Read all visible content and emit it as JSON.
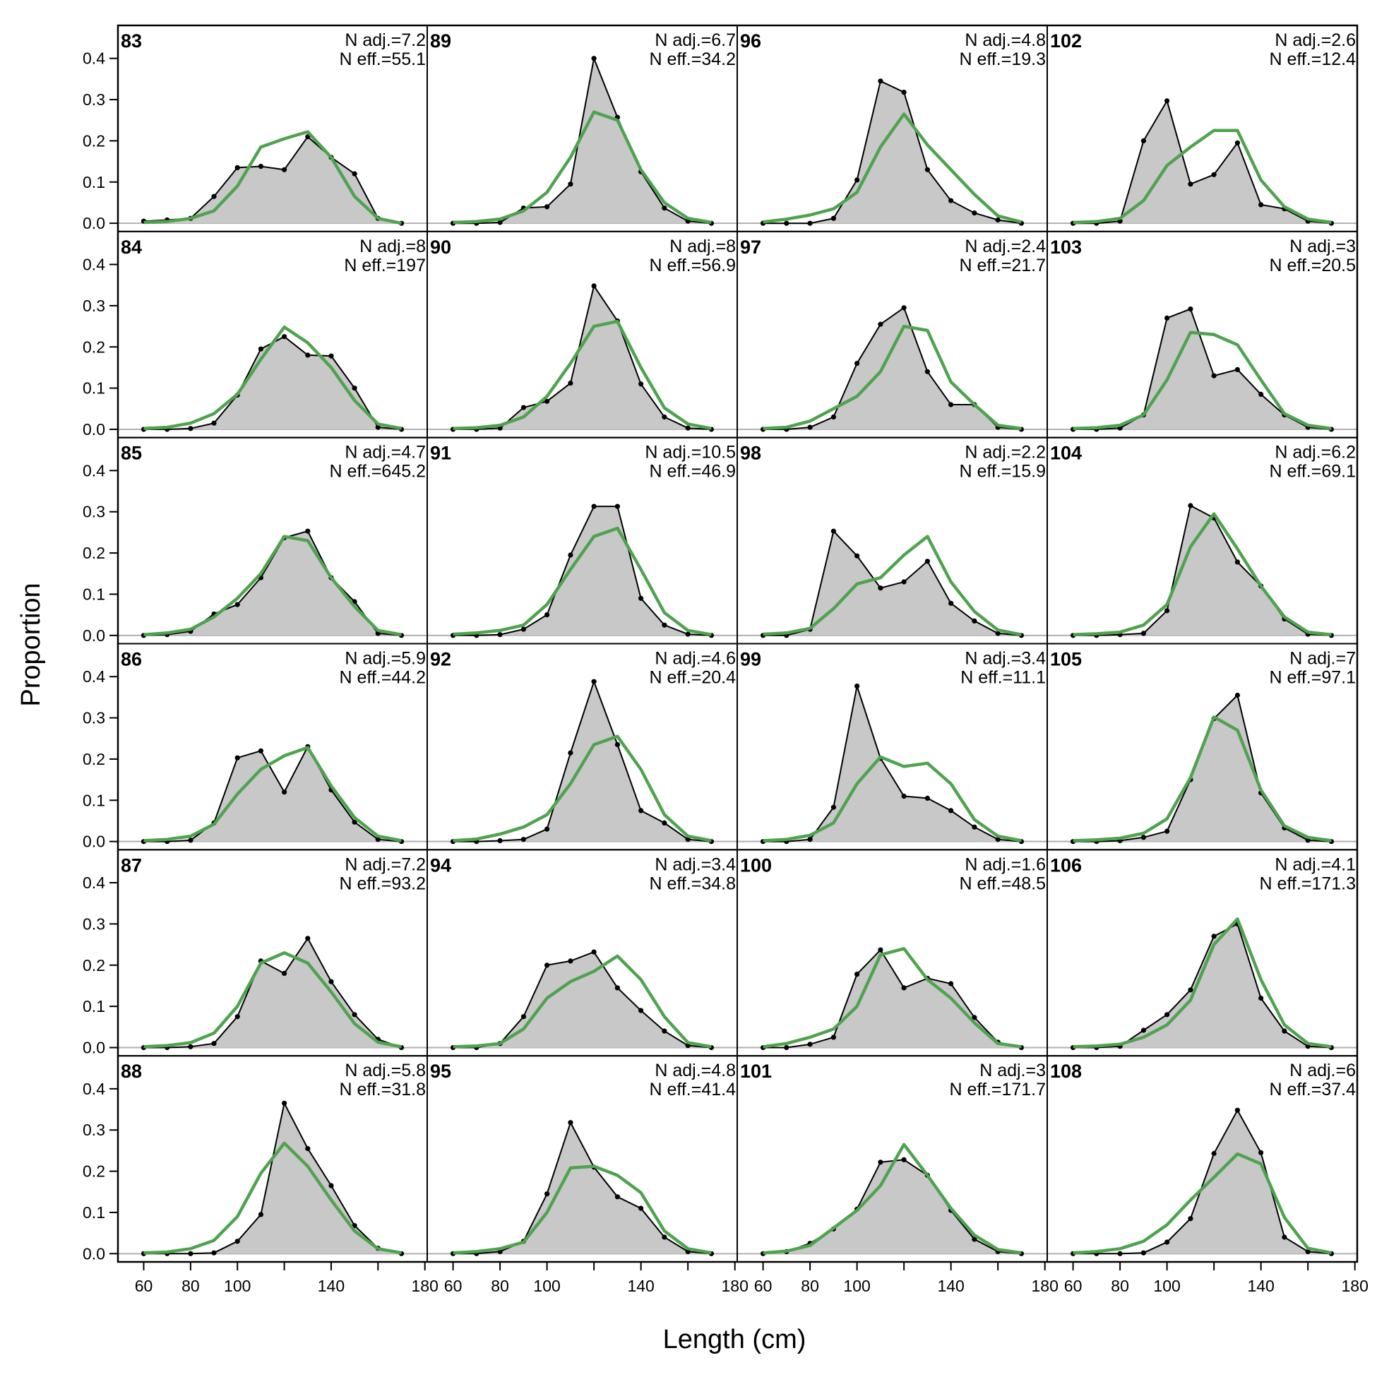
{
  "chart_data": {
    "type": "area",
    "xlabel": "Length (cm)",
    "ylabel": "Proportion",
    "x": [
      60,
      70,
      80,
      90,
      100,
      110,
      120,
      130,
      140,
      150,
      160,
      170
    ],
    "xlim": [
      49,
      181
    ],
    "ylim": [
      -0.02,
      0.48
    ],
    "x_ticks": [
      60,
      80,
      100,
      140,
      180
    ],
    "x_tick_labels": [
      "60",
      "80",
      "100",
      "140",
      "180"
    ],
    "y_ticks": [
      0.0,
      0.1,
      0.2,
      0.3,
      0.4
    ],
    "y_tick_labels": [
      "0.0",
      "0.1",
      "0.2",
      "0.3",
      "0.4"
    ],
    "colors": {
      "observed_fill": "#c8c8c8",
      "observed_line": "#000000",
      "expected_line": "#4fa34f",
      "zero_line": "#b0b0b0"
    },
    "grid": false,
    "legend": "none",
    "panels": [
      {
        "label": "83",
        "n_adj": "N adj.=7.2",
        "n_eff": "N eff.=55.1",
        "obs": [
          0.005,
          0.008,
          0.012,
          0.065,
          0.135,
          0.138,
          0.13,
          0.21,
          0.16,
          0.12,
          0.012,
          0.0
        ],
        "exp": [
          0.002,
          0.004,
          0.012,
          0.03,
          0.09,
          0.185,
          0.205,
          0.222,
          0.16,
          0.065,
          0.012,
          0.0
        ]
      },
      {
        "label": "89",
        "n_adj": "N adj.=6.7",
        "n_eff": "N eff.=34.2",
        "obs": [
          0.0,
          0.0,
          0.002,
          0.037,
          0.04,
          0.095,
          0.4,
          0.257,
          0.125,
          0.037,
          0.005,
          0.0
        ],
        "exp": [
          0.002,
          0.004,
          0.01,
          0.03,
          0.075,
          0.16,
          0.27,
          0.25,
          0.13,
          0.05,
          0.012,
          0.002
        ]
      },
      {
        "label": "96",
        "n_adj": "N adj.=4.8",
        "n_eff": "N eff.=19.3",
        "obs": [
          0.0,
          0.0,
          0.0,
          0.012,
          0.105,
          0.345,
          0.318,
          0.13,
          0.055,
          0.025,
          0.008,
          0.0
        ],
        "exp": [
          0.003,
          0.01,
          0.02,
          0.035,
          0.075,
          0.185,
          0.265,
          0.19,
          0.13,
          0.07,
          0.018,
          0.003
        ]
      },
      {
        "label": "102",
        "n_adj": "N adj.=2.6",
        "n_eff": "N eff.=12.4",
        "obs": [
          0.0,
          0.0,
          0.005,
          0.2,
          0.297,
          0.095,
          0.118,
          0.195,
          0.045,
          0.035,
          0.005,
          0.0
        ],
        "exp": [
          0.002,
          0.004,
          0.012,
          0.055,
          0.14,
          0.185,
          0.225,
          0.225,
          0.105,
          0.04,
          0.01,
          0.002
        ]
      },
      {
        "label": "84",
        "n_adj": "N adj.=8",
        "n_eff": "N eff.=197",
        "obs": [
          0.0,
          0.0,
          0.002,
          0.015,
          0.083,
          0.195,
          0.225,
          0.18,
          0.178,
          0.1,
          0.005,
          0.0
        ],
        "exp": [
          0.002,
          0.005,
          0.015,
          0.038,
          0.085,
          0.17,
          0.248,
          0.21,
          0.15,
          0.07,
          0.013,
          0.002
        ]
      },
      {
        "label": "90",
        "n_adj": "N adj.=8",
        "n_eff": "N eff.=56.9",
        "obs": [
          0.0,
          0.0,
          0.003,
          0.053,
          0.068,
          0.112,
          0.348,
          0.263,
          0.11,
          0.03,
          0.003,
          0.0
        ],
        "exp": [
          0.002,
          0.004,
          0.01,
          0.03,
          0.08,
          0.16,
          0.25,
          0.262,
          0.15,
          0.052,
          0.013,
          0.002
        ]
      },
      {
        "label": "97",
        "n_adj": "N adj.=2.4",
        "n_eff": "N eff.=21.7",
        "obs": [
          0.0,
          0.0,
          0.005,
          0.03,
          0.16,
          0.255,
          0.295,
          0.14,
          0.06,
          0.06,
          0.005,
          0.0
        ],
        "exp": [
          0.002,
          0.005,
          0.02,
          0.05,
          0.08,
          0.14,
          0.25,
          0.24,
          0.115,
          0.06,
          0.01,
          0.002
        ]
      },
      {
        "label": "103",
        "n_adj": "N adj.=3",
        "n_eff": "N eff.=20.5",
        "obs": [
          0.0,
          0.0,
          0.003,
          0.035,
          0.27,
          0.292,
          0.13,
          0.145,
          0.085,
          0.035,
          0.005,
          0.0
        ],
        "exp": [
          0.002,
          0.004,
          0.01,
          0.035,
          0.12,
          0.235,
          0.23,
          0.205,
          0.12,
          0.038,
          0.01,
          0.002
        ]
      },
      {
        "label": "85",
        "n_adj": "N adj.=4.7",
        "n_eff": "N eff.=645.2",
        "obs": [
          0.0,
          0.002,
          0.01,
          0.052,
          0.075,
          0.14,
          0.237,
          0.253,
          0.14,
          0.082,
          0.005,
          0.0
        ],
        "exp": [
          0.002,
          0.006,
          0.015,
          0.045,
          0.09,
          0.15,
          0.24,
          0.23,
          0.14,
          0.07,
          0.012,
          0.002
        ]
      },
      {
        "label": "91",
        "n_adj": "N adj.=10.5",
        "n_eff": "N eff.=46.9",
        "obs": [
          0.0,
          0.0,
          0.002,
          0.015,
          0.05,
          0.195,
          0.313,
          0.313,
          0.09,
          0.025,
          0.003,
          0.0
        ],
        "exp": [
          0.003,
          0.006,
          0.012,
          0.025,
          0.075,
          0.16,
          0.24,
          0.26,
          0.16,
          0.055,
          0.012,
          0.002
        ]
      },
      {
        "label": "98",
        "n_adj": "N adj.=2.2",
        "n_eff": "N eff.=15.9",
        "obs": [
          0.0,
          0.0,
          0.015,
          0.253,
          0.193,
          0.115,
          0.13,
          0.18,
          0.078,
          0.035,
          0.005,
          0.0
        ],
        "exp": [
          0.003,
          0.006,
          0.017,
          0.065,
          0.125,
          0.14,
          0.195,
          0.24,
          0.13,
          0.058,
          0.013,
          0.002
        ]
      },
      {
        "label": "104",
        "n_adj": "N adj.=6.2",
        "n_eff": "N eff.=69.1",
        "obs": [
          0.0,
          0.0,
          0.002,
          0.005,
          0.06,
          0.315,
          0.285,
          0.178,
          0.12,
          0.04,
          0.003,
          0.0
        ],
        "exp": [
          0.002,
          0.004,
          0.008,
          0.025,
          0.075,
          0.215,
          0.295,
          0.21,
          0.12,
          0.045,
          0.008,
          0.002
        ]
      },
      {
        "label": "86",
        "n_adj": "N adj.=5.9",
        "n_eff": "N eff.=44.2",
        "obs": [
          0.0,
          0.0,
          0.003,
          0.045,
          0.203,
          0.22,
          0.12,
          0.23,
          0.125,
          0.047,
          0.005,
          0.0
        ],
        "exp": [
          0.002,
          0.005,
          0.013,
          0.042,
          0.115,
          0.175,
          0.208,
          0.228,
          0.135,
          0.058,
          0.013,
          0.002
        ]
      },
      {
        "label": "92",
        "n_adj": "N adj.=4.6",
        "n_eff": "N eff.=20.4",
        "obs": [
          0.0,
          0.0,
          0.002,
          0.005,
          0.03,
          0.215,
          0.388,
          0.235,
          0.075,
          0.045,
          0.005,
          0.0
        ],
        "exp": [
          0.002,
          0.006,
          0.018,
          0.035,
          0.065,
          0.14,
          0.235,
          0.255,
          0.175,
          0.065,
          0.013,
          0.002
        ]
      },
      {
        "label": "99",
        "n_adj": "N adj.=3.4",
        "n_eff": "N eff.=11.1",
        "obs": [
          0.0,
          0.0,
          0.005,
          0.083,
          0.377,
          0.202,
          0.11,
          0.105,
          0.075,
          0.035,
          0.005,
          0.0
        ],
        "exp": [
          0.002,
          0.005,
          0.015,
          0.045,
          0.14,
          0.205,
          0.182,
          0.19,
          0.14,
          0.053,
          0.013,
          0.002
        ]
      },
      {
        "label": "105",
        "n_adj": "N adj.=7",
        "n_eff": "N eff.=97.1",
        "obs": [
          0.0,
          0.0,
          0.002,
          0.01,
          0.025,
          0.15,
          0.298,
          0.355,
          0.118,
          0.033,
          0.003,
          0.0
        ],
        "exp": [
          0.002,
          0.004,
          0.008,
          0.02,
          0.055,
          0.155,
          0.302,
          0.27,
          0.125,
          0.038,
          0.01,
          0.002
        ]
      },
      {
        "label": "87",
        "n_adj": "N adj.=7.2",
        "n_eff": "N eff.=93.2",
        "obs": [
          0.0,
          0.0,
          0.002,
          0.01,
          0.075,
          0.21,
          0.18,
          0.265,
          0.16,
          0.08,
          0.02,
          0.0
        ],
        "exp": [
          0.002,
          0.005,
          0.012,
          0.035,
          0.1,
          0.205,
          0.23,
          0.205,
          0.135,
          0.058,
          0.013,
          0.002
        ]
      },
      {
        "label": "94",
        "n_adj": "N adj.=3.4",
        "n_eff": "N eff.=34.8",
        "obs": [
          0.0,
          0.0,
          0.01,
          0.075,
          0.2,
          0.21,
          0.232,
          0.145,
          0.09,
          0.04,
          0.005,
          0.0
        ],
        "exp": [
          0.002,
          0.004,
          0.01,
          0.045,
          0.12,
          0.16,
          0.185,
          0.222,
          0.165,
          0.075,
          0.012,
          0.002
        ]
      },
      {
        "label": "100",
        "n_adj": "N adj.=1.6",
        "n_eff": "N eff.=48.5",
        "obs": [
          0.0,
          0.0,
          0.008,
          0.025,
          0.178,
          0.237,
          0.145,
          0.168,
          0.155,
          0.073,
          0.013,
          0.0
        ],
        "exp": [
          0.002,
          0.01,
          0.025,
          0.045,
          0.1,
          0.225,
          0.24,
          0.165,
          0.12,
          0.06,
          0.01,
          0.002
        ]
      },
      {
        "label": "106",
        "n_adj": "N adj.=4.1",
        "n_eff": "N eff.=171.3",
        "obs": [
          0.0,
          0.0,
          0.003,
          0.042,
          0.08,
          0.14,
          0.27,
          0.3,
          0.12,
          0.04,
          0.003,
          0.0
        ],
        "exp": [
          0.002,
          0.004,
          0.008,
          0.025,
          0.055,
          0.115,
          0.25,
          0.312,
          0.165,
          0.055,
          0.01,
          0.002
        ]
      },
      {
        "label": "88",
        "n_adj": "N adj.=5.8",
        "n_eff": "N eff.=31.8",
        "obs": [
          0.0,
          0.0,
          0.0,
          0.002,
          0.03,
          0.095,
          0.365,
          0.255,
          0.165,
          0.068,
          0.013,
          0.0
        ],
        "exp": [
          0.002,
          0.004,
          0.012,
          0.032,
          0.09,
          0.195,
          0.268,
          0.212,
          0.13,
          0.055,
          0.012,
          0.002
        ]
      },
      {
        "label": "95",
        "n_adj": "N adj.=4.8",
        "n_eff": "N eff.=41.4",
        "obs": [
          0.0,
          0.0,
          0.005,
          0.03,
          0.145,
          0.318,
          0.21,
          0.138,
          0.11,
          0.04,
          0.005,
          0.0
        ],
        "exp": [
          0.002,
          0.005,
          0.012,
          0.028,
          0.1,
          0.208,
          0.212,
          0.19,
          0.148,
          0.055,
          0.012,
          0.002
        ]
      },
      {
        "label": "101",
        "n_adj": "N adj.=3",
        "n_eff": "N eff.=171.7",
        "obs": [
          0.0,
          0.005,
          0.025,
          0.06,
          0.108,
          0.222,
          0.228,
          0.19,
          0.105,
          0.035,
          0.005,
          0.0
        ],
        "exp": [
          0.002,
          0.006,
          0.02,
          0.062,
          0.105,
          0.165,
          0.265,
          0.19,
          0.11,
          0.045,
          0.01,
          0.002
        ]
      },
      {
        "label": "108",
        "n_adj": "N adj.=6",
        "n_eff": "N eff.=37.4",
        "obs": [
          0.0,
          0.0,
          0.0,
          0.002,
          0.028,
          0.085,
          0.243,
          0.348,
          0.245,
          0.04,
          0.005,
          0.0
        ],
        "exp": [
          0.002,
          0.005,
          0.012,
          0.03,
          0.07,
          0.13,
          0.185,
          0.242,
          0.218,
          0.088,
          0.013,
          0.002
        ]
      }
    ]
  }
}
